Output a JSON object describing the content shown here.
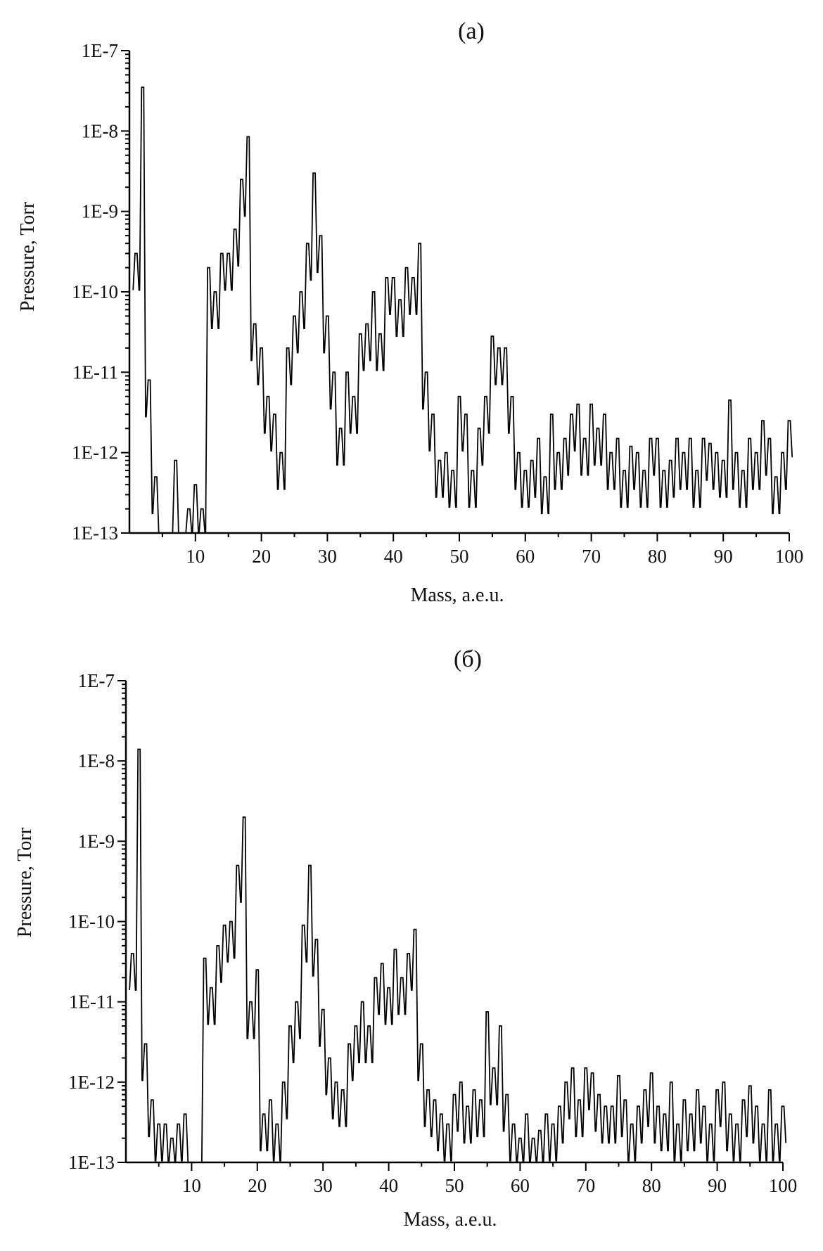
{
  "figure": {
    "panels": [
      {
        "label": "(a)",
        "xlabel": "Mass, a.e.u.",
        "ylabel": "Pressure, Torr"
      },
      {
        "label": "(б)",
        "xlabel": "Mass, a.e.u.",
        "ylabel": "Pressure, Torr"
      }
    ]
  },
  "chart_data": [
    {
      "type": "line",
      "title": "(a)",
      "xlabel": "Mass, a.e.u.",
      "ylabel": "Pressure, Torr",
      "xlim": [
        0,
        100
      ],
      "ylim": [
        1e-13,
        1e-07
      ],
      "yscale": "log",
      "x_ticks": [
        10,
        20,
        30,
        40,
        50,
        60,
        70,
        80,
        90,
        100
      ],
      "y_ticks": [
        "1E-13",
        "1E-12",
        "1E-11",
        "1E-10",
        "1E-9",
        "1E-8",
        "1E-7"
      ],
      "grid": false,
      "series": [
        {
          "x": [
            1,
            2,
            3,
            4,
            5,
            6,
            7,
            8,
            9,
            10,
            11,
            12,
            13,
            14,
            15,
            16,
            17,
            18,
            19,
            20,
            21,
            22,
            23,
            24,
            25,
            26,
            27,
            28,
            29,
            30,
            31,
            32,
            33,
            34,
            35,
            36,
            37,
            38,
            39,
            40,
            41,
            42,
            43,
            44,
            45,
            46,
            47,
            48,
            49,
            50,
            51,
            52,
            53,
            54,
            55,
            56,
            57,
            58,
            59,
            60,
            61,
            62,
            63,
            64,
            65,
            66,
            67,
            68,
            69,
            70,
            71,
            72,
            73,
            74,
            75,
            76,
            77,
            78,
            79,
            80,
            81,
            82,
            83,
            84,
            85,
            86,
            87,
            88,
            89,
            90,
            91,
            92,
            93,
            94,
            95,
            96,
            97,
            98,
            99,
            100
          ],
          "y": [
            3e-10,
            3.5e-08,
            8e-12,
            5e-13,
            1e-13,
            1e-13,
            8e-13,
            1e-13,
            2e-13,
            4e-13,
            2e-13,
            2e-10,
            1e-10,
            3e-10,
            3e-10,
            6e-10,
            2.5e-09,
            8.5e-09,
            4e-11,
            2e-11,
            5e-12,
            3e-12,
            1e-12,
            2e-11,
            5e-11,
            1e-10,
            4e-10,
            3e-09,
            5e-10,
            5e-11,
            1e-11,
            2e-12,
            1e-11,
            5e-12,
            3e-11,
            4e-11,
            1e-10,
            3e-11,
            1.5e-10,
            1.5e-10,
            8e-11,
            2e-10,
            1.5e-10,
            4e-10,
            1e-11,
            3e-12,
            8e-13,
            1e-12,
            6e-13,
            5e-12,
            3e-12,
            6e-13,
            2e-12,
            5e-12,
            2.8e-11,
            2e-11,
            2e-11,
            5e-12,
            1e-12,
            6e-13,
            8e-13,
            1.5e-12,
            5e-13,
            3e-12,
            1e-12,
            1.5e-12,
            3e-12,
            4e-12,
            1.5e-12,
            4e-12,
            2e-12,
            3e-12,
            1e-12,
            1.5e-12,
            6e-13,
            1.2e-12,
            1e-12,
            6e-13,
            1.5e-12,
            1.5e-12,
            6e-13,
            8e-13,
            1.5e-12,
            1e-12,
            1.5e-12,
            6e-13,
            1.5e-12,
            1.3e-12,
            1e-12,
            8e-13,
            4.5e-12,
            1e-12,
            6e-13,
            1.5e-12,
            1e-12,
            2.5e-12,
            1.5e-12,
            5e-13,
            1e-12,
            2.5e-12
          ]
        }
      ]
    },
    {
      "type": "line",
      "title": "(б)",
      "xlabel": "Mass, a.e.u.",
      "ylabel": "Pressure, Torr",
      "xlim": [
        0,
        100
      ],
      "ylim": [
        1e-13,
        1e-07
      ],
      "yscale": "log",
      "x_ticks": [
        10,
        20,
        30,
        40,
        50,
        60,
        70,
        80,
        90,
        100
      ],
      "y_ticks": [
        "1E-13",
        "1E-12",
        "1E-11",
        "1E-10",
        "1E-9",
        "1E-8",
        "1E-7"
      ],
      "grid": false,
      "series": [
        {
          "x": [
            1,
            2,
            3,
            4,
            5,
            6,
            7,
            8,
            9,
            10,
            11,
            12,
            13,
            14,
            15,
            16,
            17,
            18,
            19,
            20,
            21,
            22,
            23,
            24,
            25,
            26,
            27,
            28,
            29,
            30,
            31,
            32,
            33,
            34,
            35,
            36,
            37,
            38,
            39,
            40,
            41,
            42,
            43,
            44,
            45,
            46,
            47,
            48,
            49,
            50,
            51,
            52,
            53,
            54,
            55,
            56,
            57,
            58,
            59,
            60,
            61,
            62,
            63,
            64,
            65,
            66,
            67,
            68,
            69,
            70,
            71,
            72,
            73,
            74,
            75,
            76,
            77,
            78,
            79,
            80,
            81,
            82,
            83,
            84,
            85,
            86,
            87,
            88,
            89,
            90,
            91,
            92,
            93,
            94,
            95,
            96,
            97,
            98,
            99,
            100
          ],
          "y": [
            4e-11,
            1.4e-08,
            3e-12,
            6e-13,
            3e-13,
            3e-13,
            2e-13,
            3e-13,
            4e-13,
            1e-13,
            1e-13,
            3.5e-11,
            1.5e-11,
            5e-11,
            9e-11,
            1e-10,
            5e-10,
            2e-09,
            1e-11,
            2.5e-11,
            4e-13,
            6e-13,
            3e-13,
            1e-12,
            5e-12,
            1e-11,
            9e-11,
            5e-10,
            6e-11,
            8e-12,
            2e-12,
            1e-12,
            8e-13,
            3e-12,
            5e-12,
            1e-11,
            5e-12,
            2e-11,
            3e-11,
            1.5e-11,
            4.5e-11,
            2e-11,
            4e-11,
            8e-11,
            3e-12,
            8e-13,
            6e-13,
            4e-13,
            3e-13,
            7e-13,
            1e-12,
            5e-13,
            8e-13,
            6e-13,
            7.5e-12,
            1.5e-12,
            5e-12,
            7e-13,
            3e-13,
            2e-13,
            4e-13,
            2e-13,
            2.5e-13,
            4e-13,
            3e-13,
            5e-13,
            1e-12,
            1.5e-12,
            6e-13,
            1.5e-12,
            1.3e-12,
            7e-13,
            5e-13,
            5e-13,
            1.2e-12,
            6e-13,
            3e-13,
            5e-13,
            8e-13,
            1.3e-12,
            5e-13,
            4e-13,
            1e-12,
            3e-13,
            6e-13,
            4e-13,
            8e-13,
            5e-13,
            3e-13,
            8e-13,
            1e-12,
            4e-13,
            3e-13,
            6e-13,
            9e-13,
            5e-13,
            3e-13,
            8e-13,
            3e-13,
            5e-13
          ]
        }
      ]
    }
  ]
}
